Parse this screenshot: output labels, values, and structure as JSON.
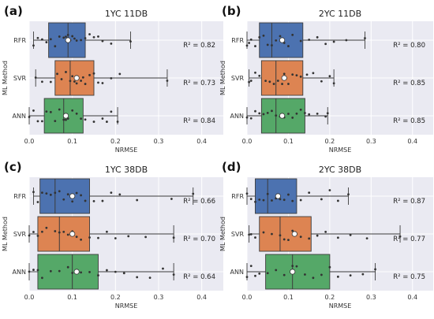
{
  "chart_data": [
    {
      "type": "boxplot",
      "panel_label": "(a)",
      "title": "1YC 11DB",
      "xlabel": "NRMSE",
      "ylabel": "ML Method",
      "xlim": [
        0,
        0.45
      ],
      "xticks": [
        "0.0",
        "0.1",
        "0.2",
        "0.3",
        "0.4"
      ],
      "grid": true,
      "series": [
        {
          "name": "RFR",
          "color": "#4c72b0",
          "whisker_low": 0.01,
          "q1": 0.045,
          "median": 0.09,
          "q3": 0.13,
          "whisker_high": 0.235,
          "mean": 0.09,
          "r2": "R² = 0.82",
          "points": [
            0.01,
            0.02,
            0.03,
            0.04,
            0.05,
            0.06,
            0.07,
            0.08,
            0.085,
            0.09,
            0.095,
            0.1,
            0.105,
            0.11,
            0.12,
            0.13,
            0.14,
            0.15,
            0.16,
            0.17,
            0.19,
            0.235
          ]
        },
        {
          "name": "SVR",
          "color": "#dd8452",
          "whisker_low": 0.015,
          "q1": 0.06,
          "median": 0.095,
          "q3": 0.15,
          "whisker_high": 0.32,
          "mean": 0.11,
          "r2": "R² = 0.73",
          "points": [
            0.015,
            0.03,
            0.05,
            0.065,
            0.075,
            0.085,
            0.095,
            0.1,
            0.105,
            0.11,
            0.12,
            0.125,
            0.13,
            0.14,
            0.15,
            0.16,
            0.17,
            0.19,
            0.21,
            0.32
          ]
        },
        {
          "name": "ANN",
          "color": "#55a868",
          "whisker_low": 0.0,
          "q1": 0.035,
          "median": 0.08,
          "q3": 0.125,
          "whisker_high": 0.205,
          "mean": 0.085,
          "r2": "R² = 0.84",
          "points": [
            0.0,
            0.01,
            0.02,
            0.03,
            0.04,
            0.05,
            0.06,
            0.07,
            0.08,
            0.085,
            0.09,
            0.1,
            0.11,
            0.12,
            0.13,
            0.15,
            0.17,
            0.18,
            0.19,
            0.205
          ]
        }
      ]
    },
    {
      "type": "boxplot",
      "panel_label": "(b)",
      "title": "2YC 11DB",
      "xlabel": "NRMSE",
      "ylabel": "ML Method",
      "xlim": [
        0,
        0.45
      ],
      "xticks": [
        "0.0",
        "0.1",
        "0.2",
        "0.3",
        "0.4"
      ],
      "grid": true,
      "series": [
        {
          "name": "RFR",
          "color": "#4c72b0",
          "whisker_low": 0.0,
          "q1": 0.03,
          "median": 0.06,
          "q3": 0.135,
          "whisker_high": 0.285,
          "mean": 0.085,
          "r2": "R² = 0.80",
          "points": [
            0.0,
            0.005,
            0.01,
            0.02,
            0.03,
            0.04,
            0.05,
            0.06,
            0.07,
            0.08,
            0.09,
            0.1,
            0.11,
            0.13,
            0.15,
            0.17,
            0.19,
            0.21,
            0.24,
            0.285
          ]
        },
        {
          "name": "SVR",
          "color": "#dd8452",
          "whisker_low": 0.005,
          "q1": 0.035,
          "median": 0.07,
          "q3": 0.135,
          "whisker_high": 0.21,
          "mean": 0.09,
          "r2": "R² = 0.85",
          "points": [
            0.005,
            0.01,
            0.02,
            0.03,
            0.045,
            0.055,
            0.065,
            0.075,
            0.085,
            0.09,
            0.1,
            0.11,
            0.12,
            0.13,
            0.145,
            0.16,
            0.18,
            0.2,
            0.21
          ]
        },
        {
          "name": "ANN",
          "color": "#55a868",
          "whisker_low": 0.0,
          "q1": 0.035,
          "median": 0.07,
          "q3": 0.14,
          "whisker_high": 0.195,
          "mean": 0.085,
          "r2": "R² = 0.85",
          "points": [
            0.0,
            0.01,
            0.02,
            0.03,
            0.04,
            0.05,
            0.06,
            0.07,
            0.08,
            0.09,
            0.1,
            0.11,
            0.12,
            0.13,
            0.14,
            0.15,
            0.17,
            0.19,
            0.195
          ]
        }
      ]
    },
    {
      "type": "boxplot",
      "panel_label": "(c)",
      "title": "1YC 38DB",
      "xlabel": "NRMSE",
      "ylabel": "ML Method",
      "xlim": [
        0,
        0.45
      ],
      "xticks": [
        "0.0",
        "0.1",
        "0.2",
        "0.3",
        "0.4"
      ],
      "grid": true,
      "series": [
        {
          "name": "RFR",
          "color": "#4c72b0",
          "whisker_low": 0.01,
          "q1": 0.025,
          "median": 0.06,
          "q3": 0.14,
          "whisker_high": 0.38,
          "mean": 0.1,
          "r2": "R² = 0.66",
          "points": [
            0.01,
            0.02,
            0.03,
            0.04,
            0.05,
            0.06,
            0.07,
            0.08,
            0.09,
            0.1,
            0.11,
            0.12,
            0.13,
            0.15,
            0.17,
            0.19,
            0.21,
            0.25,
            0.33,
            0.38
          ]
        },
        {
          "name": "SVR",
          "color": "#dd8452",
          "whisker_low": 0.0,
          "q1": 0.02,
          "median": 0.07,
          "q3": 0.14,
          "whisker_high": 0.335,
          "mean": 0.1,
          "r2": "R² = 0.70",
          "points": [
            0.0,
            0.01,
            0.02,
            0.03,
            0.04,
            0.06,
            0.07,
            0.08,
            0.09,
            0.1,
            0.11,
            0.12,
            0.14,
            0.16,
            0.18,
            0.2,
            0.23,
            0.27,
            0.335
          ]
        },
        {
          "name": "ANN",
          "color": "#55a868",
          "whisker_low": 0.0,
          "q1": 0.02,
          "median": 0.1,
          "q3": 0.16,
          "whisker_high": 0.335,
          "mean": 0.11,
          "r2": "R² = 0.64",
          "points": [
            0.0,
            0.01,
            0.02,
            0.03,
            0.05,
            0.07,
            0.09,
            0.1,
            0.11,
            0.12,
            0.14,
            0.16,
            0.18,
            0.2,
            0.22,
            0.25,
            0.28,
            0.31,
            0.335
          ]
        }
      ]
    },
    {
      "type": "boxplot",
      "panel_label": "(d)",
      "title": "2YC 38DB",
      "xlabel": "NRMSE",
      "ylabel": "ML Method",
      "xlim": [
        0,
        0.45
      ],
      "xticks": [
        "0.0",
        "0.1",
        "0.2",
        "0.3",
        "0.4"
      ],
      "grid": true,
      "series": [
        {
          "name": "RFR",
          "color": "#4c72b0",
          "whisker_low": 0.0,
          "q1": 0.02,
          "median": 0.05,
          "q3": 0.12,
          "whisker_high": 0.245,
          "mean": 0.075,
          "r2": "R² = 0.87",
          "points": [
            0.0,
            0.01,
            0.02,
            0.03,
            0.04,
            0.05,
            0.06,
            0.07,
            0.08,
            0.09,
            0.1,
            0.11,
            0.13,
            0.15,
            0.18,
            0.2,
            0.22,
            0.245
          ]
        },
        {
          "name": "SVR",
          "color": "#dd8452",
          "whisker_low": 0.005,
          "q1": 0.03,
          "median": 0.08,
          "q3": 0.155,
          "whisker_high": 0.37,
          "mean": 0.115,
          "r2": "R² = 0.77",
          "points": [
            0.005,
            0.01,
            0.02,
            0.04,
            0.06,
            0.08,
            0.09,
            0.1,
            0.11,
            0.13,
            0.15,
            0.17,
            0.19,
            0.22,
            0.25,
            0.29,
            0.37
          ]
        },
        {
          "name": "ANN",
          "color": "#55a868",
          "whisker_low": 0.0,
          "q1": 0.045,
          "median": 0.11,
          "q3": 0.2,
          "whisker_high": 0.31,
          "mean": 0.11,
          "r2": "R² = 0.75",
          "points": [
            0.0,
            0.01,
            0.02,
            0.03,
            0.05,
            0.07,
            0.09,
            0.11,
            0.12,
            0.14,
            0.16,
            0.18,
            0.2,
            0.22,
            0.25,
            0.28,
            0.31
          ]
        }
      ]
    }
  ]
}
